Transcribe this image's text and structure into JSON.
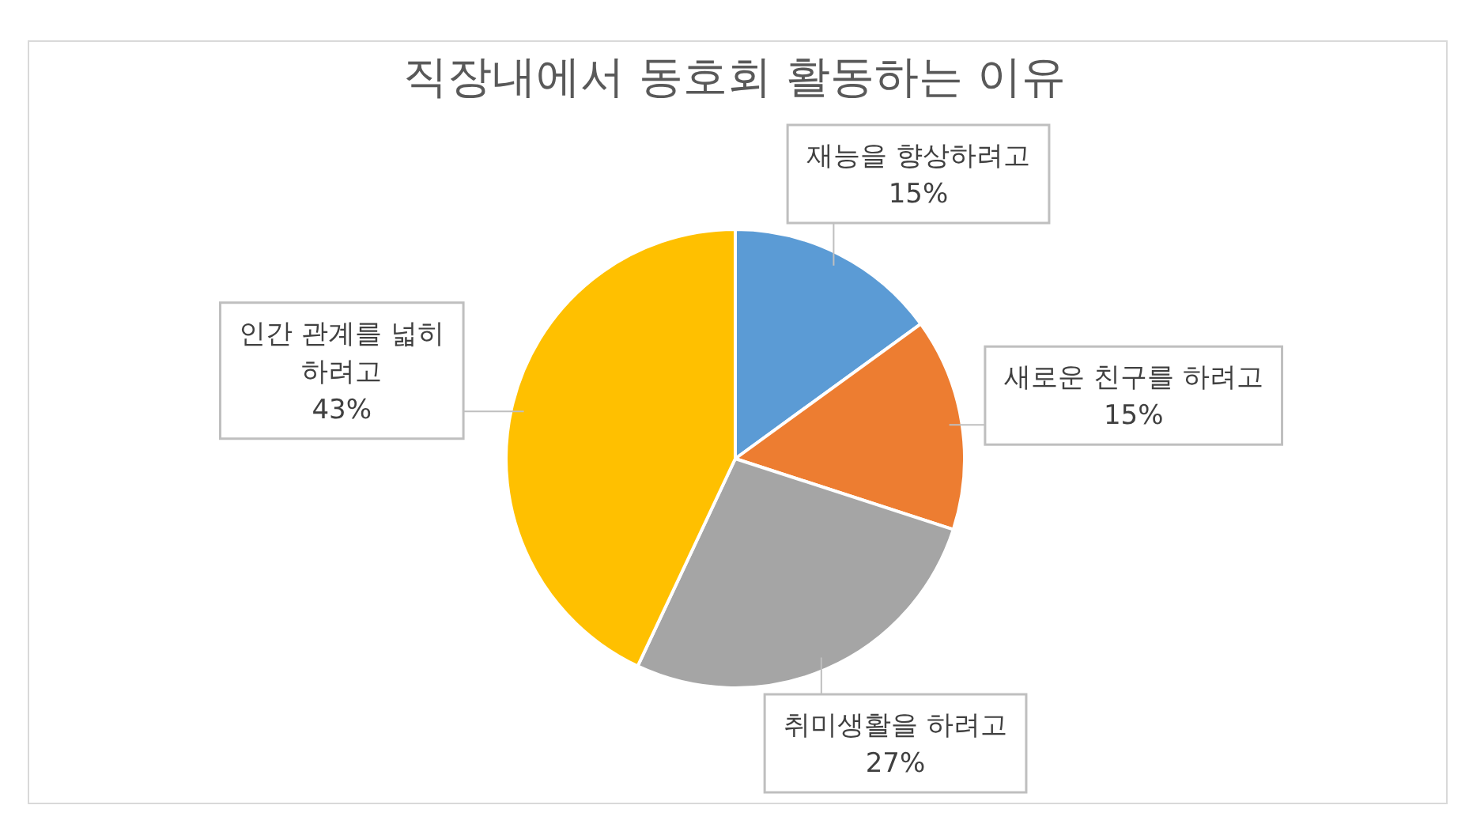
{
  "chart_data": {
    "type": "pie",
    "title": "직장내에서 동호회 활동하는 이유",
    "categories": [
      "재능을 향상하려고",
      "새로운 친구를 하려고",
      "취미생활을 하려고",
      "인간 관계를 넓히 하려고"
    ],
    "values": [
      15,
      15,
      27,
      43
    ],
    "colors": [
      "#5b9bd5",
      "#ed7d31",
      "#a5a5a5",
      "#ffc000"
    ],
    "value_labels": [
      "15%",
      "15%",
      "27%",
      "43%"
    ],
    "legend": false
  }
}
